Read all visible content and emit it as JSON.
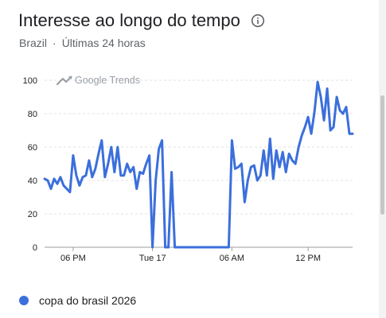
{
  "header": {
    "title": "Interesse ao longo do tempo",
    "info_icon": "info-circle-icon"
  },
  "subtitle": {
    "region": "Brazil",
    "separator": "·",
    "period": "Últimas 24 horas"
  },
  "watermark": {
    "text": "Google Trends",
    "icon": "trending-up-icon"
  },
  "colors": {
    "series": "#3b6fdc",
    "grid": "#e0e0e0",
    "axis_text": "#202124",
    "watermark": "#9aa0a6"
  },
  "chart_data": {
    "type": "line",
    "title": "Interesse ao longo do tempo",
    "xlabel": "",
    "ylabel": "",
    "ylim": [
      0,
      100
    ],
    "yticks": [
      0,
      20,
      40,
      60,
      80,
      100
    ],
    "xtick_labels": [
      "06 PM",
      "Tue 17",
      "06 AM",
      "12 PM"
    ],
    "xtick_index": [
      9,
      34,
      59,
      83
    ],
    "grid": true,
    "legend": "bottom-left",
    "series": [
      {
        "name": "copa do brasil 2026",
        "values": [
          41,
          40,
          35,
          41,
          38,
          42,
          37,
          35,
          33,
          55,
          43,
          37,
          42,
          43,
          52,
          42,
          47,
          56,
          64,
          42,
          50,
          60,
          45,
          60,
          43,
          43,
          50,
          45,
          48,
          35,
          45,
          44,
          50,
          55,
          0,
          40,
          59,
          64,
          0,
          0,
          45,
          0,
          0,
          0,
          0,
          0,
          0,
          0,
          0,
          0,
          0,
          0,
          0,
          0,
          0,
          0,
          0,
          0,
          0,
          64,
          47,
          48,
          50,
          27,
          40,
          48,
          49,
          40,
          43,
          58,
          43,
          65,
          41,
          58,
          48,
          57,
          45,
          56,
          52,
          50,
          60,
          67,
          72,
          78,
          68,
          81,
          99,
          90,
          76,
          95,
          70,
          72,
          90,
          82,
          80,
          84,
          68,
          68
        ]
      }
    ]
  }
}
